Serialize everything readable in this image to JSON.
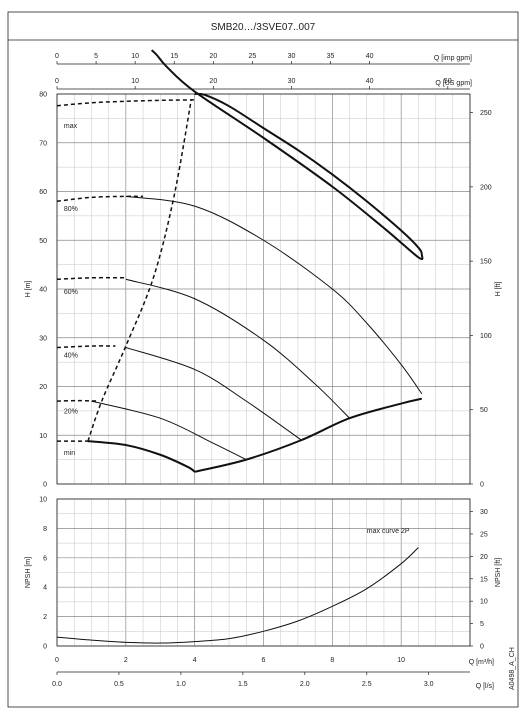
{
  "title": "SMB20…/3SVE07..007",
  "code": "A0498_A_CH",
  "chart_data": [
    {
      "type": "line",
      "name_key": "head",
      "ylabel": "H [m]",
      "ylabel_right": "H [ft]",
      "xlim": [
        0,
        12
      ],
      "ylim": [
        0,
        80
      ],
      "ylim_right": [
        0,
        262.5
      ],
      "yticks": [
        0,
        10,
        20,
        30,
        40,
        50,
        60,
        70,
        80
      ],
      "yticks_right": [
        0,
        50,
        100,
        150,
        200,
        250
      ],
      "top_axes": [
        {
          "label": "Q [imp gpm]",
          "ticks": [
            0,
            5,
            10,
            15,
            20,
            25,
            30,
            35,
            40
          ],
          "factor": 0.2271
        },
        {
          "label": "Q [US gpm]",
          "ticks": [
            0,
            10,
            20,
            30,
            40,
            50
          ],
          "factor": 0.2271
        }
      ],
      "series": [
        {
          "name": "max",
          "style": "bold",
          "x": [
            4.0,
            4.3,
            5.0,
            6.0,
            7.0,
            8.0,
            9.0,
            10.0,
            10.5,
            10.6,
            10.5,
            9.5,
            8.0,
            6.0,
            4.0,
            3.2,
            2.9,
            2.75
          ],
          "y": [
            80.0,
            79.8,
            77.5,
            73.0,
            68.5,
            63.5,
            58.0,
            52.0,
            48.5,
            47.0,
            46.5,
            52.5,
            61.0,
            71.0,
            80.5,
            85.5,
            88.0,
            89.0
          ]
        },
        {
          "name": "80%",
          "x": [
            2.0,
            4.0,
            6.0,
            8.0,
            9.0,
            10.0,
            10.6
          ],
          "y": [
            59.0,
            57.0,
            50.0,
            40.0,
            33.0,
            24.5,
            18.5
          ]
        },
        {
          "name": "60%",
          "x": [
            2.0,
            4.0,
            6.0,
            7.5,
            8.5
          ],
          "y": [
            42.0,
            38.0,
            29.5,
            20.5,
            13.5
          ]
        },
        {
          "name": "40%",
          "x": [
            2.0,
            4.0,
            5.5,
            7.1
          ],
          "y": [
            28.0,
            23.5,
            17.0,
            9.0
          ]
        },
        {
          "name": "20%",
          "x": [
            1.0,
            3.0,
            4.5,
            5.5
          ],
          "y": [
            17.0,
            13.5,
            8.5,
            5.0
          ]
        },
        {
          "name": "min",
          "style": "bold",
          "x": [
            0.9,
            2.0,
            3.0,
            3.8,
            4.0
          ],
          "y": [
            8.8,
            8.0,
            6.0,
            3.5,
            2.5
          ]
        },
        {
          "name": "",
          "style": "bold",
          "x": [
            4.0,
            5.5,
            7.1,
            8.5,
            10.0,
            10.6
          ],
          "y": [
            2.5,
            5.0,
            9.0,
            13.5,
            16.5,
            17.5
          ]
        },
        {
          "name": "",
          "style": "dashed",
          "x": [
            0.0,
            1.0,
            2.0,
            3.0,
            4.0
          ],
          "y": [
            77.6,
            78.2,
            78.5,
            78.7,
            78.8
          ]
        },
        {
          "name": "",
          "style": "dashed",
          "x": [
            0.0,
            1.0,
            2.0,
            2.5
          ],
          "y": [
            58.0,
            58.8,
            59.0,
            59.0
          ]
        },
        {
          "name": "",
          "style": "dashed",
          "x": [
            0.0,
            1.0,
            2.0
          ],
          "y": [
            42.0,
            42.3,
            42.3
          ]
        },
        {
          "name": "",
          "style": "dashed",
          "x": [
            0.0,
            1.0,
            1.7
          ],
          "y": [
            28.0,
            28.3,
            28.3
          ]
        },
        {
          "name": "",
          "style": "dashed",
          "x": [
            0.0,
            0.6,
            1.2
          ],
          "y": [
            17.0,
            17.1,
            17.0
          ]
        },
        {
          "name": "",
          "style": "dashed",
          "x": [
            0.0,
            0.9
          ],
          "y": [
            8.8,
            8.8
          ]
        },
        {
          "name": "",
          "style": "dashed",
          "x": [
            0.9,
            1.3,
            2.0,
            2.8,
            3.4,
            3.9
          ],
          "y": [
            8.8,
            17.0,
            28.3,
            42.3,
            59.0,
            78.8
          ]
        }
      ],
      "annotations": [
        {
          "text": "max",
          "x": 0.2,
          "y": 73.0
        },
        {
          "text": "80%",
          "x": 0.2,
          "y": 56.0
        },
        {
          "text": "60%",
          "x": 0.2,
          "y": 39.0
        },
        {
          "text": "40%",
          "x": 0.2,
          "y": 26.0
        },
        {
          "text": "20%",
          "x": 0.2,
          "y": 14.5
        },
        {
          "text": "min",
          "x": 0.2,
          "y": 6.0
        }
      ]
    },
    {
      "type": "line",
      "name_key": "npsh",
      "ylabel": "NPSH [m]",
      "ylabel_right": "NPSH [ft]",
      "xlim": [
        0,
        12
      ],
      "ylim": [
        0,
        10
      ],
      "ylim_right": [
        0,
        32.8
      ],
      "yticks": [
        0,
        2,
        4,
        6,
        8,
        10
      ],
      "yticks_right": [
        0,
        5,
        10,
        15,
        20,
        25,
        30
      ],
      "bottom_axes": [
        {
          "label": "Q [m³/h]",
          "ticks": [
            0,
            2,
            4,
            6,
            8,
            10
          ],
          "factor": 1
        },
        {
          "label": "Q [l/s]",
          "ticks": [
            "0.0",
            "0.5",
            "1.0",
            "1.5",
            "2.0",
            "2.5",
            "3.0"
          ],
          "factor": 3.6
        }
      ],
      "series": [
        {
          "name": "max curve 2P",
          "x": [
            0,
            1,
            2,
            3,
            4,
            5,
            6,
            7,
            8,
            9,
            10,
            10.5
          ],
          "y": [
            0.6,
            0.4,
            0.25,
            0.2,
            0.3,
            0.5,
            1.0,
            1.7,
            2.7,
            3.9,
            5.6,
            6.7
          ]
        }
      ],
      "annotations": [
        {
          "text": "max curve 2P",
          "x": 9.0,
          "y": 7.7
        }
      ]
    }
  ]
}
